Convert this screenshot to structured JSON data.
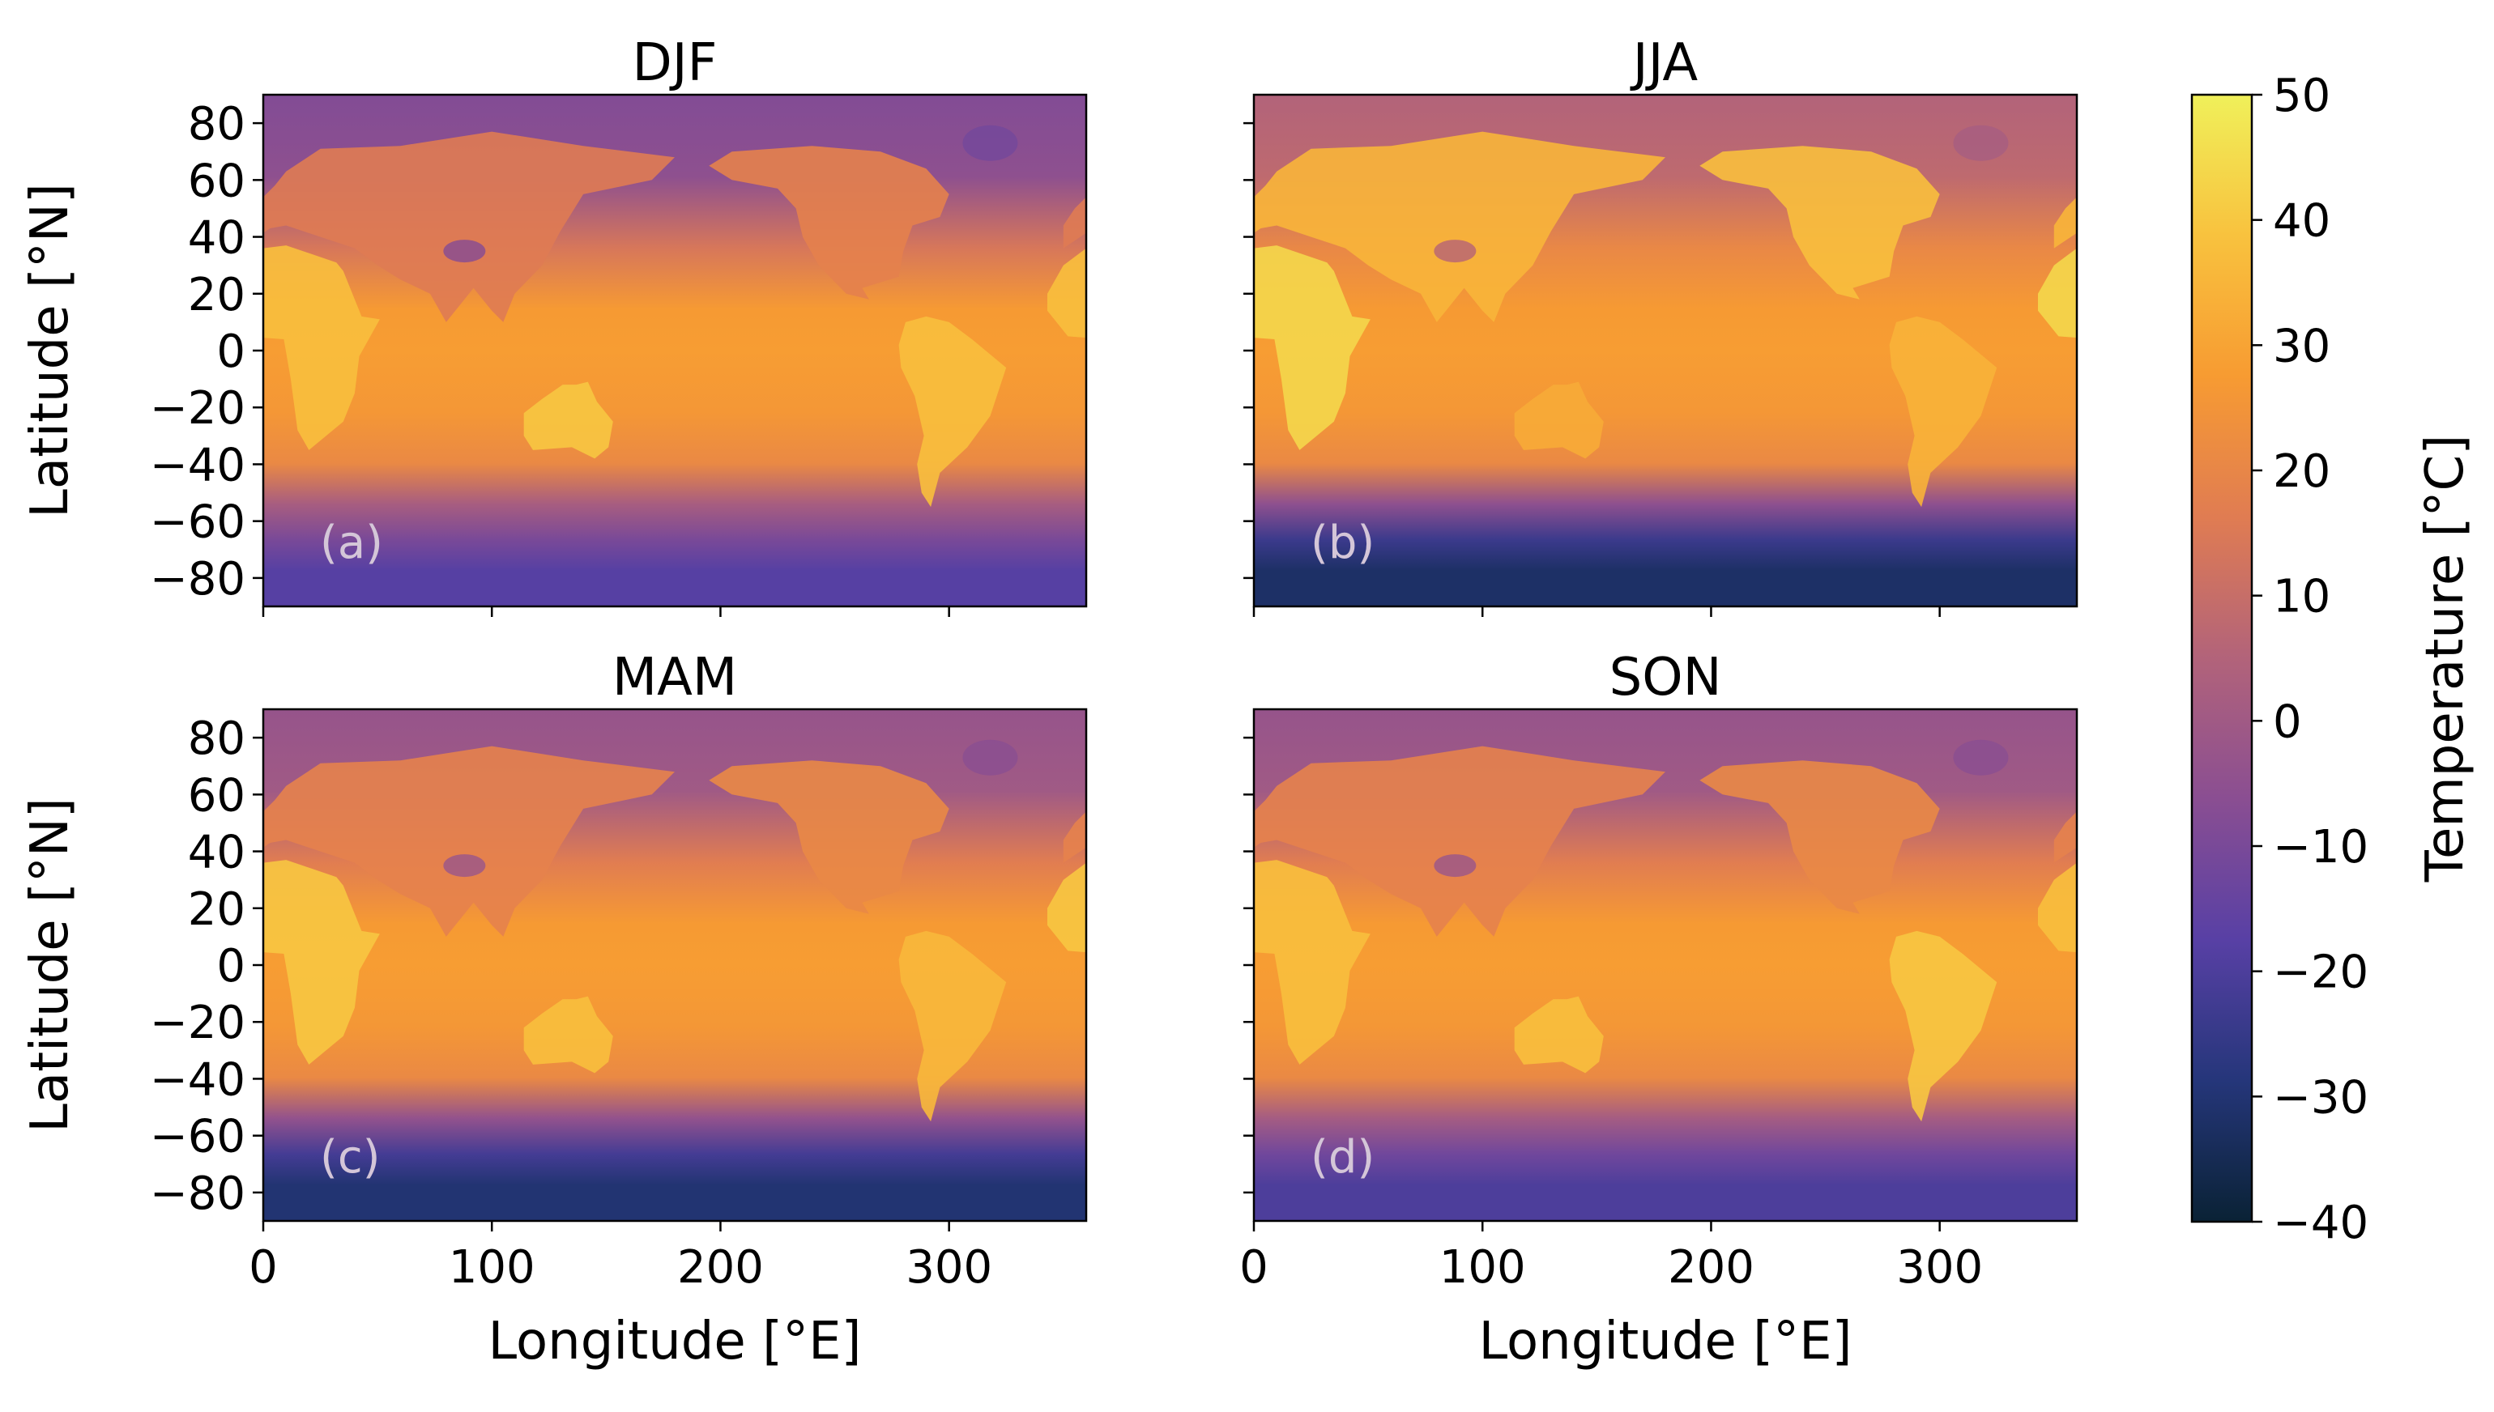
{
  "chart_data": {
    "type": "heatmap",
    "description_values": "Seasonal-mean surface temperature maps; values are approximate regional readings in degrees C",
    "panels": [
      {
        "title": "DJF",
        "label": "(a)",
        "xlabel": "",
        "ylabel": "Latitude [°N]",
        "show_xticklabels": false,
        "show_yticklabels": true,
        "regions": [
          {
            "name": "tropical ocean",
            "value": 28
          },
          {
            "name": "northern high latitudes",
            "value": -8
          },
          {
            "name": "antarctica",
            "value": -18
          },
          {
            "name": "africa",
            "value": 38
          },
          {
            "name": "australia",
            "value": 40
          },
          {
            "name": "south america",
            "value": 38
          }
        ]
      },
      {
        "title": "JJA",
        "label": "(b)",
        "xlabel": "",
        "ylabel": "",
        "show_xticklabels": false,
        "show_yticklabels": false,
        "regions": [
          {
            "name": "tropical ocean",
            "value": 28
          },
          {
            "name": "northern high latitudes",
            "value": 5
          },
          {
            "name": "antarctica",
            "value": -32
          },
          {
            "name": "eurasia",
            "value": 35
          },
          {
            "name": "sahara-arabia",
            "value": 44
          },
          {
            "name": "north america",
            "value": 38
          }
        ]
      },
      {
        "title": "MAM",
        "label": "(c)",
        "xlabel": "Longitude [°E]",
        "ylabel": "Latitude [°N]",
        "show_xticklabels": true,
        "show_yticklabels": true,
        "regions": [
          {
            "name": "tropical ocean",
            "value": 28
          },
          {
            "name": "northern high latitudes",
            "value": -3
          },
          {
            "name": "antarctica",
            "value": -30
          },
          {
            "name": "africa",
            "value": 40
          },
          {
            "name": "australia",
            "value": 38
          },
          {
            "name": "south america",
            "value": 36
          }
        ]
      },
      {
        "title": "SON",
        "label": "(d)",
        "xlabel": "Longitude [°E]",
        "ylabel": "",
        "show_xticklabels": true,
        "show_yticklabels": false,
        "regions": [
          {
            "name": "tropical ocean",
            "value": 28
          },
          {
            "name": "northern high latitudes",
            "value": -3
          },
          {
            "name": "antarctica",
            "value": -20
          },
          {
            "name": "africa",
            "value": 38
          },
          {
            "name": "australia",
            "value": 38
          },
          {
            "name": "south america",
            "value": 40
          }
        ]
      }
    ],
    "x_ticks": [
      0,
      100,
      200,
      300
    ],
    "xlim": [
      0,
      360
    ],
    "y_ticks": [
      80,
      60,
      40,
      20,
      0,
      -20,
      -40,
      -60,
      -80
    ],
    "y_tick_labels": [
      "80",
      "60",
      "40",
      "20",
      "0",
      "−20",
      "−40",
      "−60",
      "−80"
    ],
    "ylim": [
      -90,
      90
    ],
    "colorbar": {
      "label": "Temperature [°C]",
      "ticks": [
        50,
        40,
        30,
        20,
        10,
        0,
        -10,
        -20,
        -30,
        -40
      ],
      "tick_labels": [
        "50",
        "40",
        "30",
        "20",
        "10",
        "0",
        "−10",
        "−20",
        "−30",
        "−40"
      ],
      "range": [
        -40,
        50
      ],
      "colormap": [
        "#0a2235",
        "#25367a",
        "#5840a5",
        "#8a4e92",
        "#b2637a",
        "#e07c52",
        "#f79b32",
        "#f8c23e",
        "#f0f05a"
      ]
    }
  }
}
